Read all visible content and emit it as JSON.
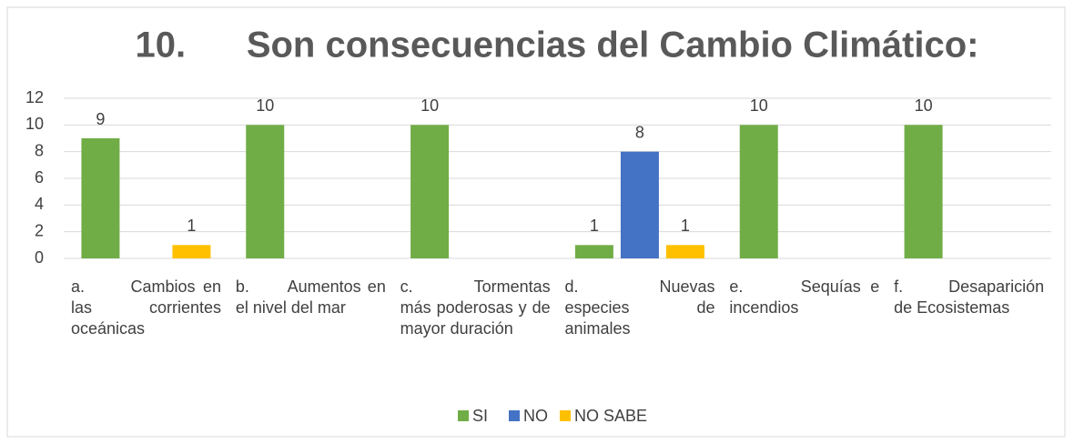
{
  "chart_data": {
    "type": "bar",
    "title": "10.      Son consecuencias del Cambio Climático:",
    "categories": [
      "a.      Cambios en las corrientes oceánicas",
      "b.      Aumentos en el nivel del mar",
      "c.      Tormentas más poderosas y de mayor duración",
      "d.      Nuevas especies de animales",
      "e.      Sequías e incendios",
      "f.      Desaparición de Ecosistemas"
    ],
    "series": [
      {
        "name": "SI",
        "color": "#70ad47",
        "values": [
          9,
          10,
          10,
          1,
          10,
          10
        ]
      },
      {
        "name": "NO",
        "color": "#4472c4",
        "values": [
          null,
          null,
          null,
          8,
          null,
          null
        ]
      },
      {
        "name": "NO SABE",
        "color": "#ffc000",
        "values": [
          1,
          null,
          null,
          1,
          null,
          null
        ]
      }
    ],
    "ylim": [
      0,
      12
    ],
    "yticks": [
      0,
      2,
      4,
      6,
      8,
      10,
      12
    ],
    "grid": true,
    "legend": "bottom"
  }
}
